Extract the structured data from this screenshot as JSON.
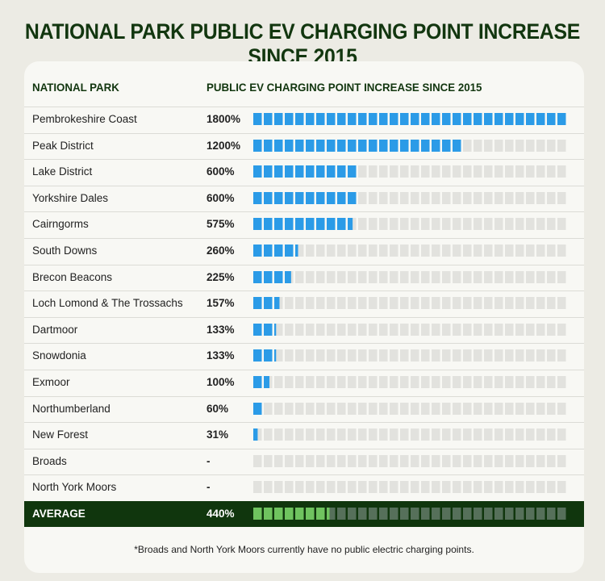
{
  "title": "NATIONAL PARK PUBLIC EV CHARGING POINT INCREASE SINCE 2015",
  "colors": {
    "title": "#12360f",
    "bar_fill": "#2b9be7",
    "bar_empty": "#e2e2de",
    "average_bg": "#10360d",
    "average_fill": "#6fc35f",
    "average_empty": "#56705a"
  },
  "chart_data": {
    "type": "bar",
    "title": "NATIONAL PARK PUBLIC EV CHARGING POINT INCREASE SINCE 2015",
    "column_headers": [
      "NATIONAL PARK",
      "PUBLIC EV CHARGING POINT INCREASE SINCE 2015"
    ],
    "xlim": [
      0,
      1800
    ],
    "rows": [
      {
        "name": "Pembrokeshire Coast",
        "label": "1800%",
        "value": 1800
      },
      {
        "name": "Peak District",
        "label": "1200%",
        "value": 1200
      },
      {
        "name": "Lake District",
        "label": "600%",
        "value": 600
      },
      {
        "name": "Yorkshire Dales",
        "label": "600%",
        "value": 600
      },
      {
        "name": "Cairngorms",
        "label": "575%",
        "value": 575
      },
      {
        "name": "South Downs",
        "label": "260%",
        "value": 260
      },
      {
        "name": "Brecon Beacons",
        "label": "225%",
        "value": 225
      },
      {
        "name": "Loch Lomond & The Trossachs",
        "label": "157%",
        "value": 157
      },
      {
        "name": "Dartmoor",
        "label": "133%",
        "value": 133
      },
      {
        "name": "Snowdonia",
        "label": "133%",
        "value": 133
      },
      {
        "name": "Exmoor",
        "label": "100%",
        "value": 100
      },
      {
        "name": "Northumberland",
        "label": "60%",
        "value": 60
      },
      {
        "name": "New Forest",
        "label": "31%",
        "value": 31
      },
      {
        "name": "Broads",
        "label": "-",
        "value": 0
      },
      {
        "name": "North York Moors",
        "label": "-",
        "value": 0
      }
    ],
    "average": {
      "name": "AVERAGE",
      "label": "440%",
      "value": 440
    },
    "footnote": "*Broads and North York Moors currently have no public electric charging points."
  }
}
